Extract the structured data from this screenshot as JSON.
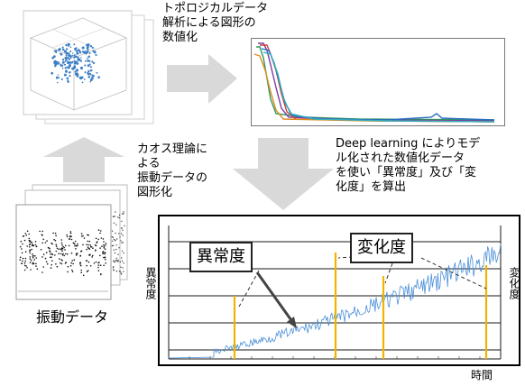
{
  "labels": {
    "tda_caption": "トポロジカルデータ\n解析による図形の\n数値化",
    "chaos_caption": "カオス理論に\nよる\n振動データの\n図形化",
    "deep_caption": "Deep learning によりモデ\nル化された数値化データ\nを使い「異常度」及び「変\n化度」を算出",
    "vibration_caption": "振動データ",
    "anomaly_callout": "異常度",
    "change_callout": "変化度",
    "y_left": "異常度",
    "y_right": "変化度",
    "x_axis": "時間"
  },
  "colors": {
    "arrow_fill": "#d9d9d9",
    "frame": "#000000",
    "grid": "#1a1a1a",
    "series_line": "#4a8fd8",
    "spike_yellow": "#f0b400",
    "callout_border": "#222222"
  },
  "icons": [
    "right-arrow-icon",
    "down-arrow-icon",
    "up-arrow-icon"
  ]
}
